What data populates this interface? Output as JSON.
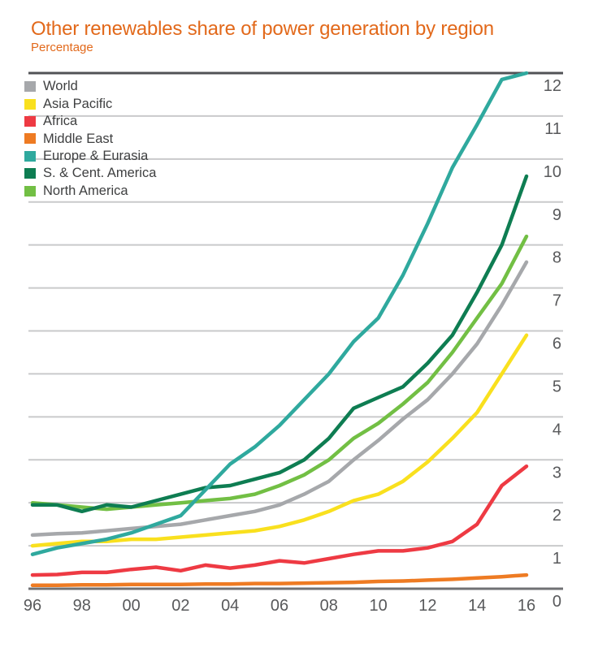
{
  "title": "Other renewables share of power generation by region",
  "subtitle": "Percentage",
  "colors": {
    "title": "#e2691b",
    "axis_text": "#58595b",
    "legend_text": "#3f4041",
    "gridline": "#c9cacb",
    "border_top": "#515256",
    "border_bottom": "#707174",
    "background": "#ffffff"
  },
  "chart_data": {
    "type": "line",
    "title": "Other renewables share of power generation by region",
    "ylabel": "Percentage",
    "x": [
      1996,
      1997,
      1998,
      1999,
      2000,
      2001,
      2002,
      2003,
      2004,
      2005,
      2006,
      2007,
      2008,
      2009,
      2010,
      2011,
      2012,
      2013,
      2014,
      2015,
      2016
    ],
    "x_tick_years": [
      1996,
      1998,
      2000,
      2002,
      2004,
      2006,
      2008,
      2010,
      2012,
      2014,
      2016
    ],
    "x_tick_labels": [
      "96",
      "98",
      "00",
      "02",
      "04",
      "06",
      "08",
      "10",
      "12",
      "14",
      "16"
    ],
    "y_ticks": [
      0,
      1,
      2,
      3,
      4,
      5,
      6,
      7,
      8,
      9,
      10,
      11,
      12
    ],
    "ylim": [
      0,
      12
    ],
    "grid": "horizontal",
    "y_axis_side": "right",
    "legend_position": "top-left",
    "series": [
      {
        "name": "World",
        "color": "#a6a8ab",
        "values": [
          1.25,
          1.28,
          1.3,
          1.35,
          1.4,
          1.45,
          1.5,
          1.6,
          1.7,
          1.8,
          1.95,
          2.2,
          2.5,
          3.0,
          3.45,
          3.95,
          4.4,
          5.0,
          5.7,
          6.6,
          7.6
        ]
      },
      {
        "name": "Asia Pacific",
        "color": "#f9e01e",
        "values": [
          1.0,
          1.05,
          1.1,
          1.1,
          1.15,
          1.15,
          1.2,
          1.25,
          1.3,
          1.35,
          1.45,
          1.6,
          1.8,
          2.05,
          2.2,
          2.5,
          2.95,
          3.5,
          4.1,
          5.0,
          5.9
        ]
      },
      {
        "name": "Africa",
        "color": "#ee3a43",
        "values": [
          0.32,
          0.33,
          0.38,
          0.38,
          0.45,
          0.5,
          0.42,
          0.55,
          0.48,
          0.55,
          0.65,
          0.6,
          0.7,
          0.8,
          0.88,
          0.88,
          0.95,
          1.1,
          1.5,
          2.4,
          2.85
        ]
      },
      {
        "name": "Middle East",
        "color": "#ee7b23",
        "values": [
          0.08,
          0.08,
          0.09,
          0.09,
          0.1,
          0.1,
          0.1,
          0.11,
          0.11,
          0.12,
          0.12,
          0.13,
          0.14,
          0.15,
          0.17,
          0.18,
          0.2,
          0.22,
          0.25,
          0.28,
          0.32
        ]
      },
      {
        "name": "Europe & Eurasia",
        "color": "#2fa99e",
        "values": [
          0.8,
          0.95,
          1.05,
          1.15,
          1.3,
          1.5,
          1.7,
          2.3,
          2.9,
          3.3,
          3.8,
          4.4,
          5.0,
          5.75,
          6.3,
          7.3,
          8.5,
          9.8,
          10.8,
          11.85,
          12.0
        ]
      },
      {
        "name": "S. & Cent. America",
        "color": "#0e7d52",
        "values": [
          1.95,
          1.95,
          1.8,
          1.95,
          1.9,
          2.05,
          2.2,
          2.35,
          2.4,
          2.55,
          2.7,
          3.0,
          3.5,
          4.2,
          4.45,
          4.7,
          5.25,
          5.9,
          6.9,
          8.0,
          9.6
        ]
      },
      {
        "name": "North America",
        "color": "#72bf44",
        "values": [
          2.0,
          1.95,
          1.9,
          1.85,
          1.9,
          1.95,
          2.0,
          2.05,
          2.1,
          2.2,
          2.4,
          2.65,
          3.0,
          3.5,
          3.85,
          4.3,
          4.8,
          5.5,
          6.3,
          7.1,
          8.2
        ]
      }
    ]
  }
}
